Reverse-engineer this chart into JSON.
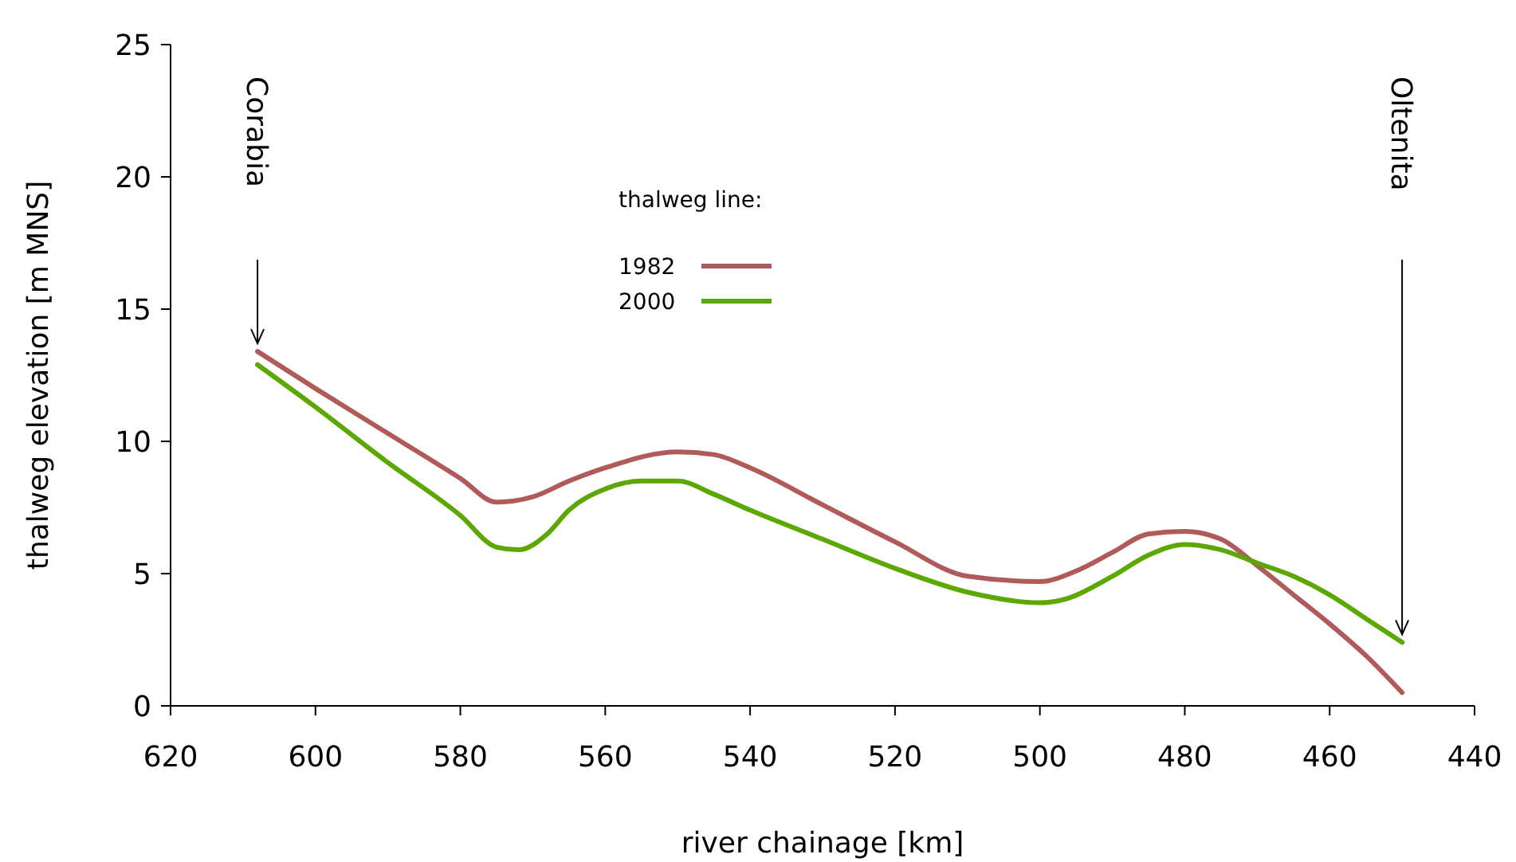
{
  "chart_data": {
    "type": "line",
    "xlabel": "river chainage [km]",
    "ylabel": "thalweg elevation [m MNS]",
    "legend_title": "thalweg line:",
    "legend": "top",
    "grid": false,
    "marker": "none",
    "line_style": "solid",
    "xlim": [
      620,
      440
    ],
    "xticks": [
      620,
      600,
      580,
      560,
      540,
      520,
      500,
      480,
      460,
      440
    ],
    "ylim": [
      0,
      25
    ],
    "yticks": [
      0,
      5,
      10,
      15,
      20,
      25
    ],
    "series": [
      {
        "name": "1982",
        "color": "#b05a5a",
        "x": [
          608,
          600,
          590,
          580,
          575,
          570,
          565,
          560,
          550,
          545,
          540,
          530,
          520,
          510,
          500,
          495,
          490,
          485,
          480,
          475,
          470,
          465,
          460,
          455,
          450
        ],
        "values": [
          13.4,
          12.0,
          10.3,
          8.6,
          7.7,
          7.9,
          8.5,
          9.0,
          9.6,
          9.5,
          9.0,
          7.6,
          6.2,
          4.9,
          4.7,
          5.1,
          5.8,
          6.5,
          6.6,
          6.3,
          5.3,
          4.2,
          3.1,
          1.9,
          0.5
        ]
      },
      {
        "name": "2000",
        "color": "#5aa800",
        "x": [
          608,
          600,
          590,
          580,
          575,
          572,
          568,
          565,
          560,
          555,
          550,
          545,
          540,
          530,
          520,
          510,
          500,
          497,
          490,
          485,
          480,
          475,
          470,
          465,
          460,
          455,
          450
        ],
        "values": [
          12.9,
          11.3,
          9.2,
          7.2,
          6.0,
          5.9,
          6.5,
          7.4,
          8.2,
          8.5,
          8.5,
          8.0,
          7.4,
          6.3,
          5.2,
          4.3,
          3.9,
          4.0,
          4.9,
          5.7,
          6.1,
          5.9,
          5.4,
          4.9,
          4.2,
          3.3,
          2.4
        ]
      }
    ],
    "annotations": [
      "Corabia",
      "Oltenita"
    ]
  }
}
